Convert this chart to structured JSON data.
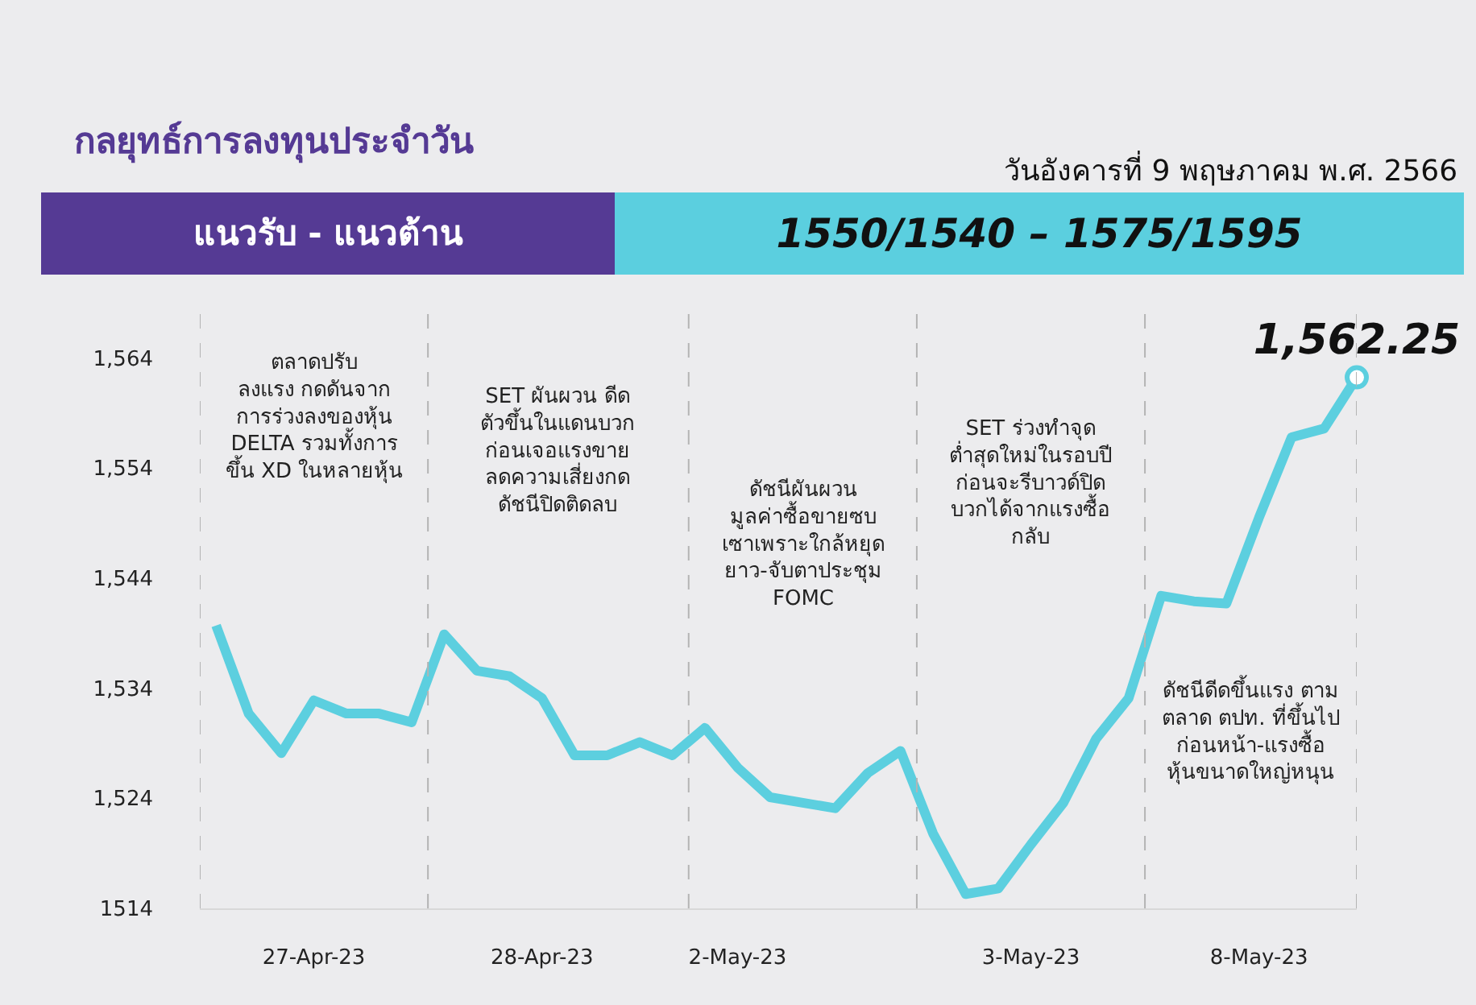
{
  "chart_data": {
    "type": "line",
    "title": "กลยุทธ์การลงทุนประจำวัน",
    "subtitle": "วันอังคารที่ 9 พฤษภาคม พ.ศ. 2566",
    "categories": [
      null,
      null,
      null,
      "27-Apr-23",
      null,
      null,
      null,
      null,
      null,
      null,
      "28-Apr-23",
      null,
      null,
      null,
      null,
      null,
      "2-May-23",
      null,
      null,
      null,
      null,
      null,
      null,
      null,
      null,
      "3-May-23",
      null,
      null,
      null,
      null,
      null,
      null,
      "8-May-23",
      null,
      null,
      null
    ],
    "series": [
      {
        "color": "#5ccfdf",
        "values": [
          1539.7,
          1531.7,
          1528.1,
          1532.9,
          1531.7,
          1531.7,
          1530.9,
          1538.9,
          1535.6,
          1535.1,
          1533.1,
          1527.9,
          1527.9,
          1529.1,
          1527.9,
          1530.4,
          1526.8,
          1524.1,
          1523.6,
          1523.1,
          1526.3,
          1528.3,
          1520.8,
          1515.3,
          1515.8,
          1519.8,
          1523.6,
          1529.4,
          1533.1,
          1542.4,
          1541.9,
          1541.7,
          1549.5,
          1556.8,
          1557.6,
          1562.25
        ],
        "value_labels": [
          null,
          null,
          null,
          null,
          null,
          null,
          null,
          null,
          null,
          null,
          null,
          null,
          null,
          null,
          null,
          null,
          null,
          null,
          null,
          null,
          null,
          null,
          null,
          null,
          null,
          null,
          null,
          null,
          null,
          null,
          null,
          null,
          null,
          null,
          null,
          "1,562.25"
        ]
      }
    ],
    "ylim": [
      1514,
      1568
    ],
    "yticks": [
      1514,
      {
        "value": 1524,
        "label": "1,524"
      },
      {
        "value": 1534,
        "label": "1,534"
      },
      {
        "value": 1544,
        "label": "1,544"
      },
      {
        "value": 1554,
        "label": "1,554"
      },
      {
        "value": 1564,
        "label": "1,564"
      }
    ],
    "annotations": [
      "ตลาดปรับ\nลงแรง กดดันจาก\nการร่วงลงของหุ้น\nDELTA รวมทั้งการ\nขึ้น XD ในหลายหุ้น",
      "SET ผันผวน ดีด\nตัวขึ้นในแดนบวก\nก่อนเจอแรงขาย\nลดความเสี่ยงกด\nดัชนีปิดติดลบ",
      "ดัชนีผันผวน\nมูลค่าซื้อขายซบ\nเซาเพราะใกล้หยุด\nยาว-จับตาประชุม\nFOMC",
      "SET ร่วงทำจุด\nต่ำสุดใหม่ในรอบปี\nก่อนจะรีบาวด์ปิด\nบวกได้จากแรงซื้อ\nกลับ",
      "ดัชนีดีดขึ้นแรง ตาม\nตลาด ตปท. ที่ขึ้นไป\nก่อนหน้า-แรงซื้อ\nหุ้นขนาดใหญ่หนุน",
      "แนวรับ - แนวต้าน",
      "1550/1540 – 1575/1595"
    ],
    "line_style": "solid"
  }
}
